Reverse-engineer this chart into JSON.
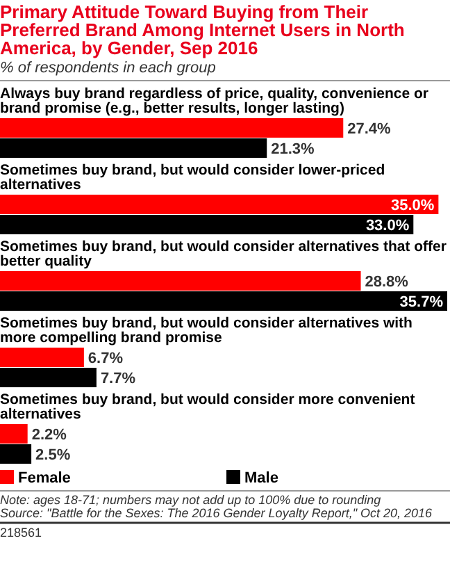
{
  "chart_data": {
    "type": "bar",
    "orientation": "horizontal",
    "title": "Primary Attitude Toward Buying from Their Preferred Brand Among Internet Users in North America, by Gender, Sep 2016",
    "subtitle": "% of respondents in each group",
    "categories": [
      "Always buy brand regardless of price, quality, convenience or brand promise (e.g., better results, longer lasting)",
      "Sometimes buy brand, but would consider lower-priced alternatives",
      "Sometimes buy brand, but would consider alternatives that offer better quality",
      "Sometimes buy brand, but would consider alternatives with more compelling brand promise",
      "Sometimes buy brand, but would consider more convenient alternatives"
    ],
    "series": [
      {
        "name": "Female",
        "color": "#ff0000",
        "values": [
          27.4,
          35.0,
          28.8,
          6.7,
          2.2
        ],
        "value_labels": [
          "27.4%",
          "35.0%",
          "28.8%",
          "6.7%",
          "2.2%"
        ]
      },
      {
        "name": "Male",
        "color": "#000000",
        "values": [
          21.3,
          33.0,
          35.7,
          7.7,
          2.5
        ],
        "value_labels": [
          "21.3%",
          "33.0%",
          "35.7%",
          "7.7%",
          "2.5%"
        ]
      }
    ],
    "legend": "bottom",
    "annotations": [
      "Note: ages 18-71; numbers may not add up to 100% due to rounding",
      "Source: \"Battle for the Sexes: The 2016 Gender Loyalty Report,\" Oct 20, 2016",
      "218561"
    ]
  }
}
